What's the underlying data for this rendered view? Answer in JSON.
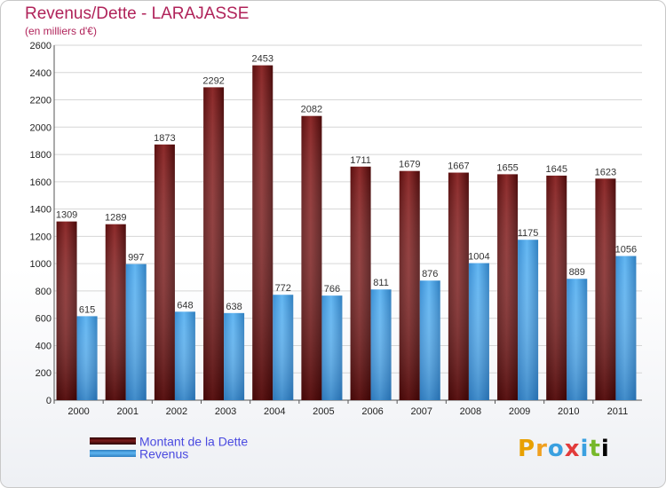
{
  "chart_data": {
    "type": "bar",
    "title": "Revenus/Dette - LARAJASSE",
    "subtitle": "(en milliers d'€)",
    "categories": [
      "2000",
      "2001",
      "2002",
      "2003",
      "2004",
      "2005",
      "2006",
      "2007",
      "2008",
      "2009",
      "2010",
      "2011"
    ],
    "series": [
      {
        "name": "Montant de la Dette",
        "color": "#7a1b1b",
        "values": [
          1309,
          1289,
          1873,
          2292,
          2453,
          2082,
          1711,
          1679,
          1667,
          1655,
          1645,
          1623
        ]
      },
      {
        "name": "Revenus",
        "color": "#4ba3e3",
        "values": [
          615,
          997,
          648,
          638,
          772,
          766,
          811,
          876,
          1004,
          1175,
          889,
          1056
        ]
      }
    ],
    "ylim": [
      0,
      2600
    ],
    "yticks": [
      0,
      200,
      400,
      600,
      800,
      1000,
      1200,
      1400,
      1600,
      1800,
      2000,
      2200,
      2400,
      2600
    ],
    "grid": true,
    "legend": "bottom-left"
  },
  "logo": {
    "text": "Proxiti",
    "letters": [
      "P",
      "r",
      "o",
      "x",
      "i",
      "t",
      "i"
    ]
  }
}
